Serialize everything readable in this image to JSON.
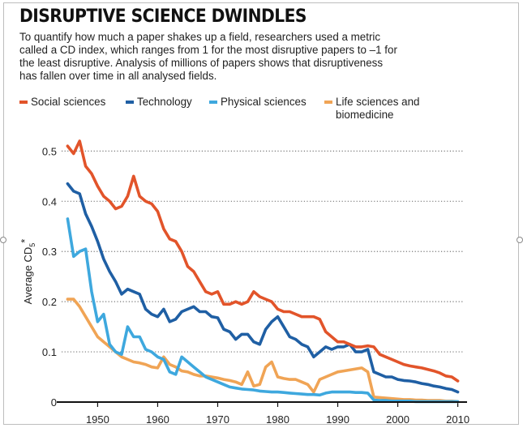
{
  "header": {
    "title": "DISRUPTIVE SCIENCE DWINDLES",
    "subtitle": "To quantify how much a paper shakes up a field, researchers used a metric called a CD index, which ranges from 1 for the most disruptive papers to –1 for the least disruptive. Analysis of millions of papers shows that disruptiveness has fallen over time in all analysed fields."
  },
  "chart_data": {
    "type": "line",
    "title": "DISRUPTIVE SCIENCE DWINDLES",
    "xlabel": "",
    "ylabel": "Average CD",
    "ylabel_subscript": "5",
    "ylabel_suffix": "*",
    "xlim": [
      1944,
      2011
    ],
    "ylim": [
      0,
      0.52
    ],
    "x_ticks": [
      1950,
      1960,
      1970,
      1980,
      1990,
      2000,
      2010
    ],
    "y_ticks": [
      0,
      0.1,
      0.2,
      0.3,
      0.4,
      0.5
    ],
    "y_tick_labels": [
      "0",
      "0.1",
      "0.2",
      "0.3",
      "0.4",
      "0.5"
    ],
    "grid": "horizontal dotted",
    "legend_position": "top",
    "series": [
      {
        "name": "Social sciences",
        "color": "#e2542a",
        "x": [
          1945,
          1946,
          1947,
          1948,
          1949,
          1950,
          1951,
          1952,
          1953,
          1954,
          1955,
          1956,
          1957,
          1958,
          1959,
          1960,
          1961,
          1962,
          1963,
          1964,
          1965,
          1966,
          1967,
          1968,
          1969,
          1970,
          1971,
          1972,
          1973,
          1974,
          1975,
          1976,
          1977,
          1978,
          1979,
          1980,
          1981,
          1982,
          1983,
          1984,
          1985,
          1986,
          1987,
          1988,
          1989,
          1990,
          1991,
          1992,
          1993,
          1994,
          1995,
          1996,
          1997,
          1998,
          1999,
          2000,
          2001,
          2002,
          2003,
          2004,
          2005,
          2006,
          2007,
          2008,
          2009,
          2010
        ],
        "y": [
          0.51,
          0.495,
          0.52,
          0.47,
          0.455,
          0.43,
          0.41,
          0.4,
          0.385,
          0.39,
          0.41,
          0.45,
          0.41,
          0.4,
          0.395,
          0.38,
          0.345,
          0.325,
          0.32,
          0.3,
          0.27,
          0.26,
          0.24,
          0.22,
          0.215,
          0.22,
          0.195,
          0.195,
          0.2,
          0.195,
          0.2,
          0.22,
          0.21,
          0.205,
          0.2,
          0.185,
          0.18,
          0.18,
          0.175,
          0.17,
          0.17,
          0.17,
          0.165,
          0.14,
          0.13,
          0.12,
          0.12,
          0.115,
          0.11,
          0.11,
          0.112,
          0.11,
          0.095,
          0.09,
          0.085,
          0.08,
          0.075,
          0.072,
          0.07,
          0.068,
          0.065,
          0.062,
          0.058,
          0.052,
          0.05,
          0.042
        ]
      },
      {
        "name": "Technology",
        "color": "#1f5fa4",
        "x": [
          1945,
          1946,
          1947,
          1948,
          1949,
          1950,
          1951,
          1952,
          1953,
          1954,
          1955,
          1956,
          1957,
          1958,
          1959,
          1960,
          1961,
          1962,
          1963,
          1964,
          1965,
          1966,
          1967,
          1968,
          1969,
          1970,
          1971,
          1972,
          1973,
          1974,
          1975,
          1976,
          1977,
          1978,
          1979,
          1980,
          1981,
          1982,
          1983,
          1984,
          1985,
          1986,
          1987,
          1988,
          1989,
          1990,
          1991,
          1992,
          1993,
          1994,
          1995,
          1996,
          1997,
          1998,
          1999,
          2000,
          2001,
          2002,
          2003,
          2004,
          2005,
          2006,
          2007,
          2008,
          2009,
          2010
        ],
        "y": [
          0.435,
          0.42,
          0.415,
          0.375,
          0.35,
          0.32,
          0.285,
          0.26,
          0.24,
          0.215,
          0.225,
          0.22,
          0.215,
          0.185,
          0.175,
          0.17,
          0.185,
          0.16,
          0.165,
          0.18,
          0.185,
          0.19,
          0.18,
          0.18,
          0.17,
          0.168,
          0.145,
          0.14,
          0.125,
          0.135,
          0.135,
          0.12,
          0.115,
          0.145,
          0.16,
          0.17,
          0.15,
          0.13,
          0.125,
          0.115,
          0.11,
          0.09,
          0.1,
          0.11,
          0.105,
          0.11,
          0.11,
          0.115,
          0.1,
          0.1,
          0.105,
          0.06,
          0.055,
          0.05,
          0.05,
          0.045,
          0.043,
          0.042,
          0.04,
          0.037,
          0.035,
          0.032,
          0.03,
          0.027,
          0.025,
          0.02
        ]
      },
      {
        "name": "Physical sciences",
        "color": "#3ea8de",
        "x": [
          1945,
          1946,
          1947,
          1948,
          1949,
          1950,
          1951,
          1952,
          1953,
          1954,
          1955,
          1956,
          1957,
          1958,
          1959,
          1960,
          1961,
          1962,
          1963,
          1964,
          1965,
          1966,
          1967,
          1968,
          1969,
          1970,
          1971,
          1972,
          1973,
          1974,
          1975,
          1976,
          1977,
          1978,
          1979,
          1980,
          1981,
          1982,
          1983,
          1984,
          1985,
          1986,
          1987,
          1988,
          1989,
          1990,
          1991,
          1992,
          1993,
          1994,
          1995,
          1996,
          1997,
          1998,
          1999,
          2000,
          2001,
          2002,
          2003,
          2004,
          2005,
          2006,
          2007,
          2008,
          2009,
          2010
        ],
        "y": [
          0.365,
          0.29,
          0.3,
          0.305,
          0.22,
          0.16,
          0.175,
          0.115,
          0.1,
          0.095,
          0.15,
          0.13,
          0.13,
          0.105,
          0.1,
          0.09,
          0.085,
          0.06,
          0.055,
          0.09,
          0.08,
          0.07,
          0.06,
          0.05,
          0.045,
          0.04,
          0.035,
          0.03,
          0.028,
          0.026,
          0.025,
          0.024,
          0.022,
          0.021,
          0.02,
          0.02,
          0.019,
          0.018,
          0.017,
          0.016,
          0.015,
          0.015,
          0.014,
          0.018,
          0.02,
          0.02,
          0.02,
          0.02,
          0.019,
          0.019,
          0.018,
          0.004,
          0.003,
          0.003,
          0.002,
          0.002,
          0.002,
          0.002,
          0.001,
          0.001,
          0.001,
          0.001,
          0.001,
          0.001,
          0.001,
          0.001
        ]
      },
      {
        "name": "Life sciences and biomedicine",
        "color": "#f0a455",
        "x": [
          1945,
          1946,
          1947,
          1948,
          1949,
          1950,
          1951,
          1952,
          1953,
          1954,
          1955,
          1956,
          1957,
          1958,
          1959,
          1960,
          1961,
          1962,
          1963,
          1964,
          1965,
          1966,
          1967,
          1968,
          1969,
          1970,
          1971,
          1972,
          1973,
          1974,
          1975,
          1976,
          1977,
          1978,
          1979,
          1980,
          1981,
          1982,
          1983,
          1984,
          1985,
          1986,
          1987,
          1988,
          1989,
          1990,
          1991,
          1992,
          1993,
          1994,
          1995,
          1996,
          1997,
          1998,
          1999,
          2000,
          2001,
          2002,
          2003,
          2004,
          2005,
          2006,
          2007,
          2008,
          2009,
          2010
        ],
        "y": [
          0.205,
          0.205,
          0.19,
          0.17,
          0.15,
          0.13,
          0.12,
          0.11,
          0.1,
          0.09,
          0.085,
          0.08,
          0.078,
          0.075,
          0.07,
          0.068,
          0.09,
          0.075,
          0.07,
          0.062,
          0.06,
          0.055,
          0.052,
          0.052,
          0.05,
          0.048,
          0.045,
          0.043,
          0.04,
          0.035,
          0.06,
          0.032,
          0.035,
          0.07,
          0.08,
          0.05,
          0.047,
          0.045,
          0.045,
          0.04,
          0.035,
          0.02,
          0.045,
          0.05,
          0.055,
          0.06,
          0.062,
          0.064,
          0.066,
          0.068,
          0.06,
          0.01,
          0.009,
          0.008,
          0.007,
          0.006,
          0.005,
          0.005,
          0.004,
          0.004,
          0.003,
          0.003,
          0.003,
          0.002,
          0.002,
          0.001
        ]
      }
    ]
  }
}
